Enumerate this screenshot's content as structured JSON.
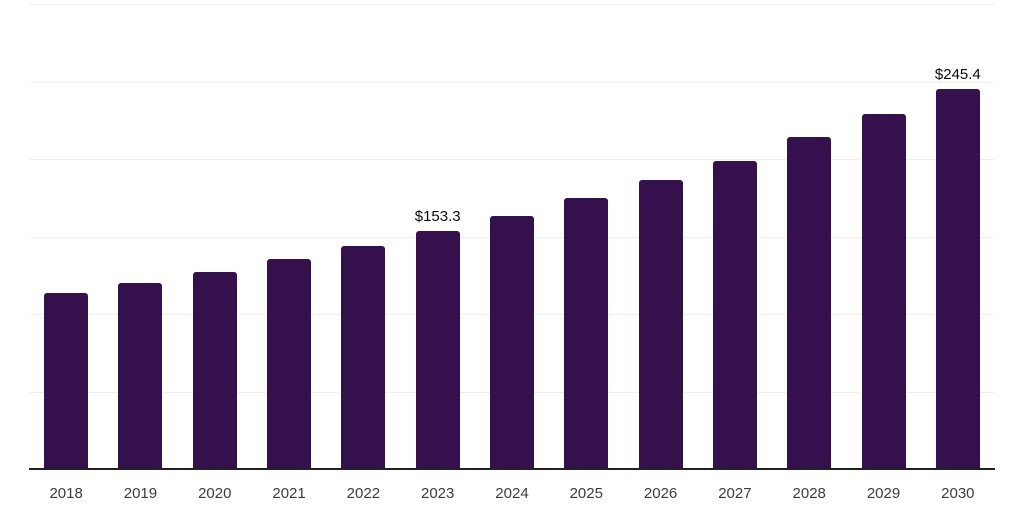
{
  "chart_data": {
    "type": "bar",
    "title": "",
    "xlabel": "",
    "ylabel": "",
    "categories": [
      "2018",
      "2019",
      "2020",
      "2021",
      "2022",
      "2023",
      "2024",
      "2025",
      "2026",
      "2027",
      "2028",
      "2029",
      "2030"
    ],
    "values": [
      113.8,
      120.3,
      127.4,
      135.6,
      143.9,
      153.3,
      163.2,
      174.7,
      186.3,
      199.0,
      214.3,
      229.1,
      245.4
    ],
    "data_labels": {
      "5": "$153.3",
      "12": "$245.4"
    },
    "ylim": [
      0,
      300
    ],
    "gridline_step": 50,
    "grid": true,
    "legend": false,
    "y_tick_labels_visible": false
  },
  "style": {
    "bar_color": "#34114D",
    "gridline_color": "#EFEFEF",
    "axis_color": "#222222",
    "data_label_color": "#0B0B0B",
    "tick_label_color": "#3C3C3C",
    "background": "#FFFFFF"
  }
}
